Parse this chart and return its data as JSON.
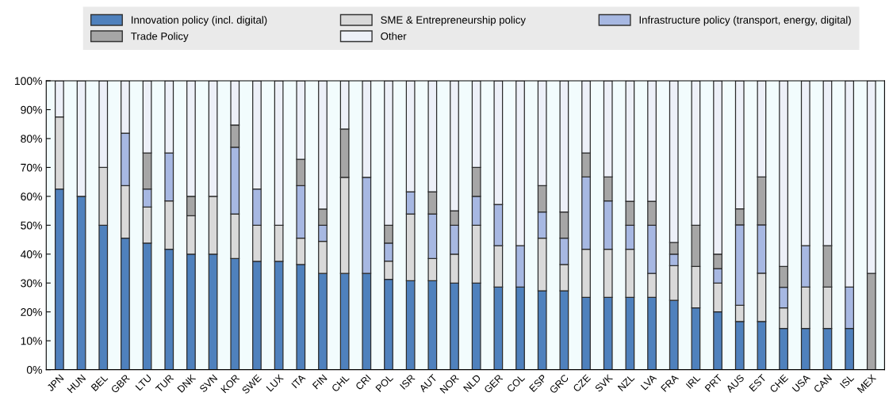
{
  "chart_data": {
    "type": "bar",
    "stacked": true,
    "categories": [
      "JPN",
      "HUN",
      "BEL",
      "GBR",
      "LTU",
      "TUR",
      "DNK",
      "SVN",
      "KOR",
      "SWE",
      "LUX",
      "ITA",
      "FIN",
      "CHL",
      "CRI",
      "POL",
      "ISR",
      "AUT",
      "NOR",
      "NLD",
      "GER",
      "COL",
      "ESP",
      "GRC",
      "CZE",
      "SVK",
      "NZL",
      "LVA",
      "FRA",
      "IRL",
      "PRT",
      "AUS",
      "EST",
      "CHE",
      "USA",
      "CAN",
      "ISL",
      "MEX"
    ],
    "series": [
      {
        "name": "Innovation policy (incl. digital)",
        "color": "#4f81bd",
        "values": [
          62.5,
          60,
          50,
          45.5,
          43.8,
          41.7,
          40,
          40,
          38.5,
          37.5,
          37.5,
          36.4,
          33.3,
          33.3,
          33.3,
          31.3,
          30.8,
          30.8,
          30,
          30,
          28.6,
          28.6,
          27.3,
          27.3,
          25,
          25,
          25,
          25,
          24,
          21.4,
          20,
          16.7,
          16.7,
          14.3,
          14.3,
          14.3,
          14.3,
          0
        ]
      },
      {
        "name": "SME & Entrepreneurship policy",
        "color": "#d9d9d9",
        "values": [
          25,
          0,
          20,
          18.2,
          12.5,
          16.7,
          13.3,
          20,
          15.4,
          12.5,
          12.5,
          9.1,
          11.1,
          33.3,
          0,
          6.3,
          23.1,
          7.7,
          10,
          20,
          14.3,
          0,
          18.2,
          9.1,
          16.7,
          16.7,
          16.7,
          8.3,
          12,
          14.3,
          10,
          5.6,
          16.7,
          7.1,
          14.3,
          14.3,
          0,
          0
        ]
      },
      {
        "name": "Infrastructure policy (transport, energy, digital)",
        "color": "#a7b8e2",
        "values": [
          0,
          0,
          0,
          18.2,
          6.2,
          16.6,
          0,
          0,
          23.1,
          12.5,
          0,
          18.2,
          5.6,
          0,
          33.3,
          6.2,
          7.7,
          15.4,
          10,
          10,
          14.3,
          14.3,
          9.1,
          9.1,
          25,
          16.7,
          8.3,
          16.7,
          4,
          0,
          5,
          27.8,
          16.7,
          7.1,
          14.3,
          0,
          14.3,
          0
        ]
      },
      {
        "name": "Trade Policy",
        "color": "#a6a6a6",
        "values": [
          0,
          0,
          0,
          0,
          12.5,
          0,
          6.7,
          0,
          7.7,
          0,
          0,
          9.1,
          5.6,
          16.7,
          0,
          6.2,
          0,
          7.7,
          5,
          10,
          0,
          0,
          9.1,
          9.1,
          8.3,
          8.3,
          8.3,
          8.3,
          4,
          14.3,
          5,
          5.6,
          16.6,
          7.2,
          0,
          14.3,
          0,
          33.3
        ]
      },
      {
        "name": "Other",
        "color": "#edf0f8",
        "values": [
          12.5,
          40,
          30,
          18.1,
          25,
          25,
          40,
          40,
          15.3,
          37.5,
          50,
          27.2,
          44.4,
          16.7,
          33.4,
          50,
          38.4,
          38.4,
          45,
          30,
          42.8,
          57.1,
          36.3,
          45.4,
          25,
          33.3,
          41.7,
          41.7,
          56,
          50,
          60,
          44.3,
          33.3,
          64.3,
          57.1,
          57.1,
          71.4,
          66.7
        ]
      }
    ],
    "ylim": [
      0,
      100
    ],
    "yticks": [
      {
        "value": 0,
        "label": "0%"
      },
      {
        "value": 10,
        "label": "10%"
      },
      {
        "value": 20,
        "label": "20%"
      },
      {
        "value": 30,
        "label": "30%"
      },
      {
        "value": 40,
        "label": "40%"
      },
      {
        "value": 50,
        "label": "50%"
      },
      {
        "value": 60,
        "label": "60%"
      },
      {
        "value": 70,
        "label": "70%"
      },
      {
        "value": 80,
        "label": "80%"
      },
      {
        "value": 90,
        "label": "90%"
      },
      {
        "value": 100,
        "label": "100%"
      }
    ],
    "legend": "top",
    "grid": false
  }
}
